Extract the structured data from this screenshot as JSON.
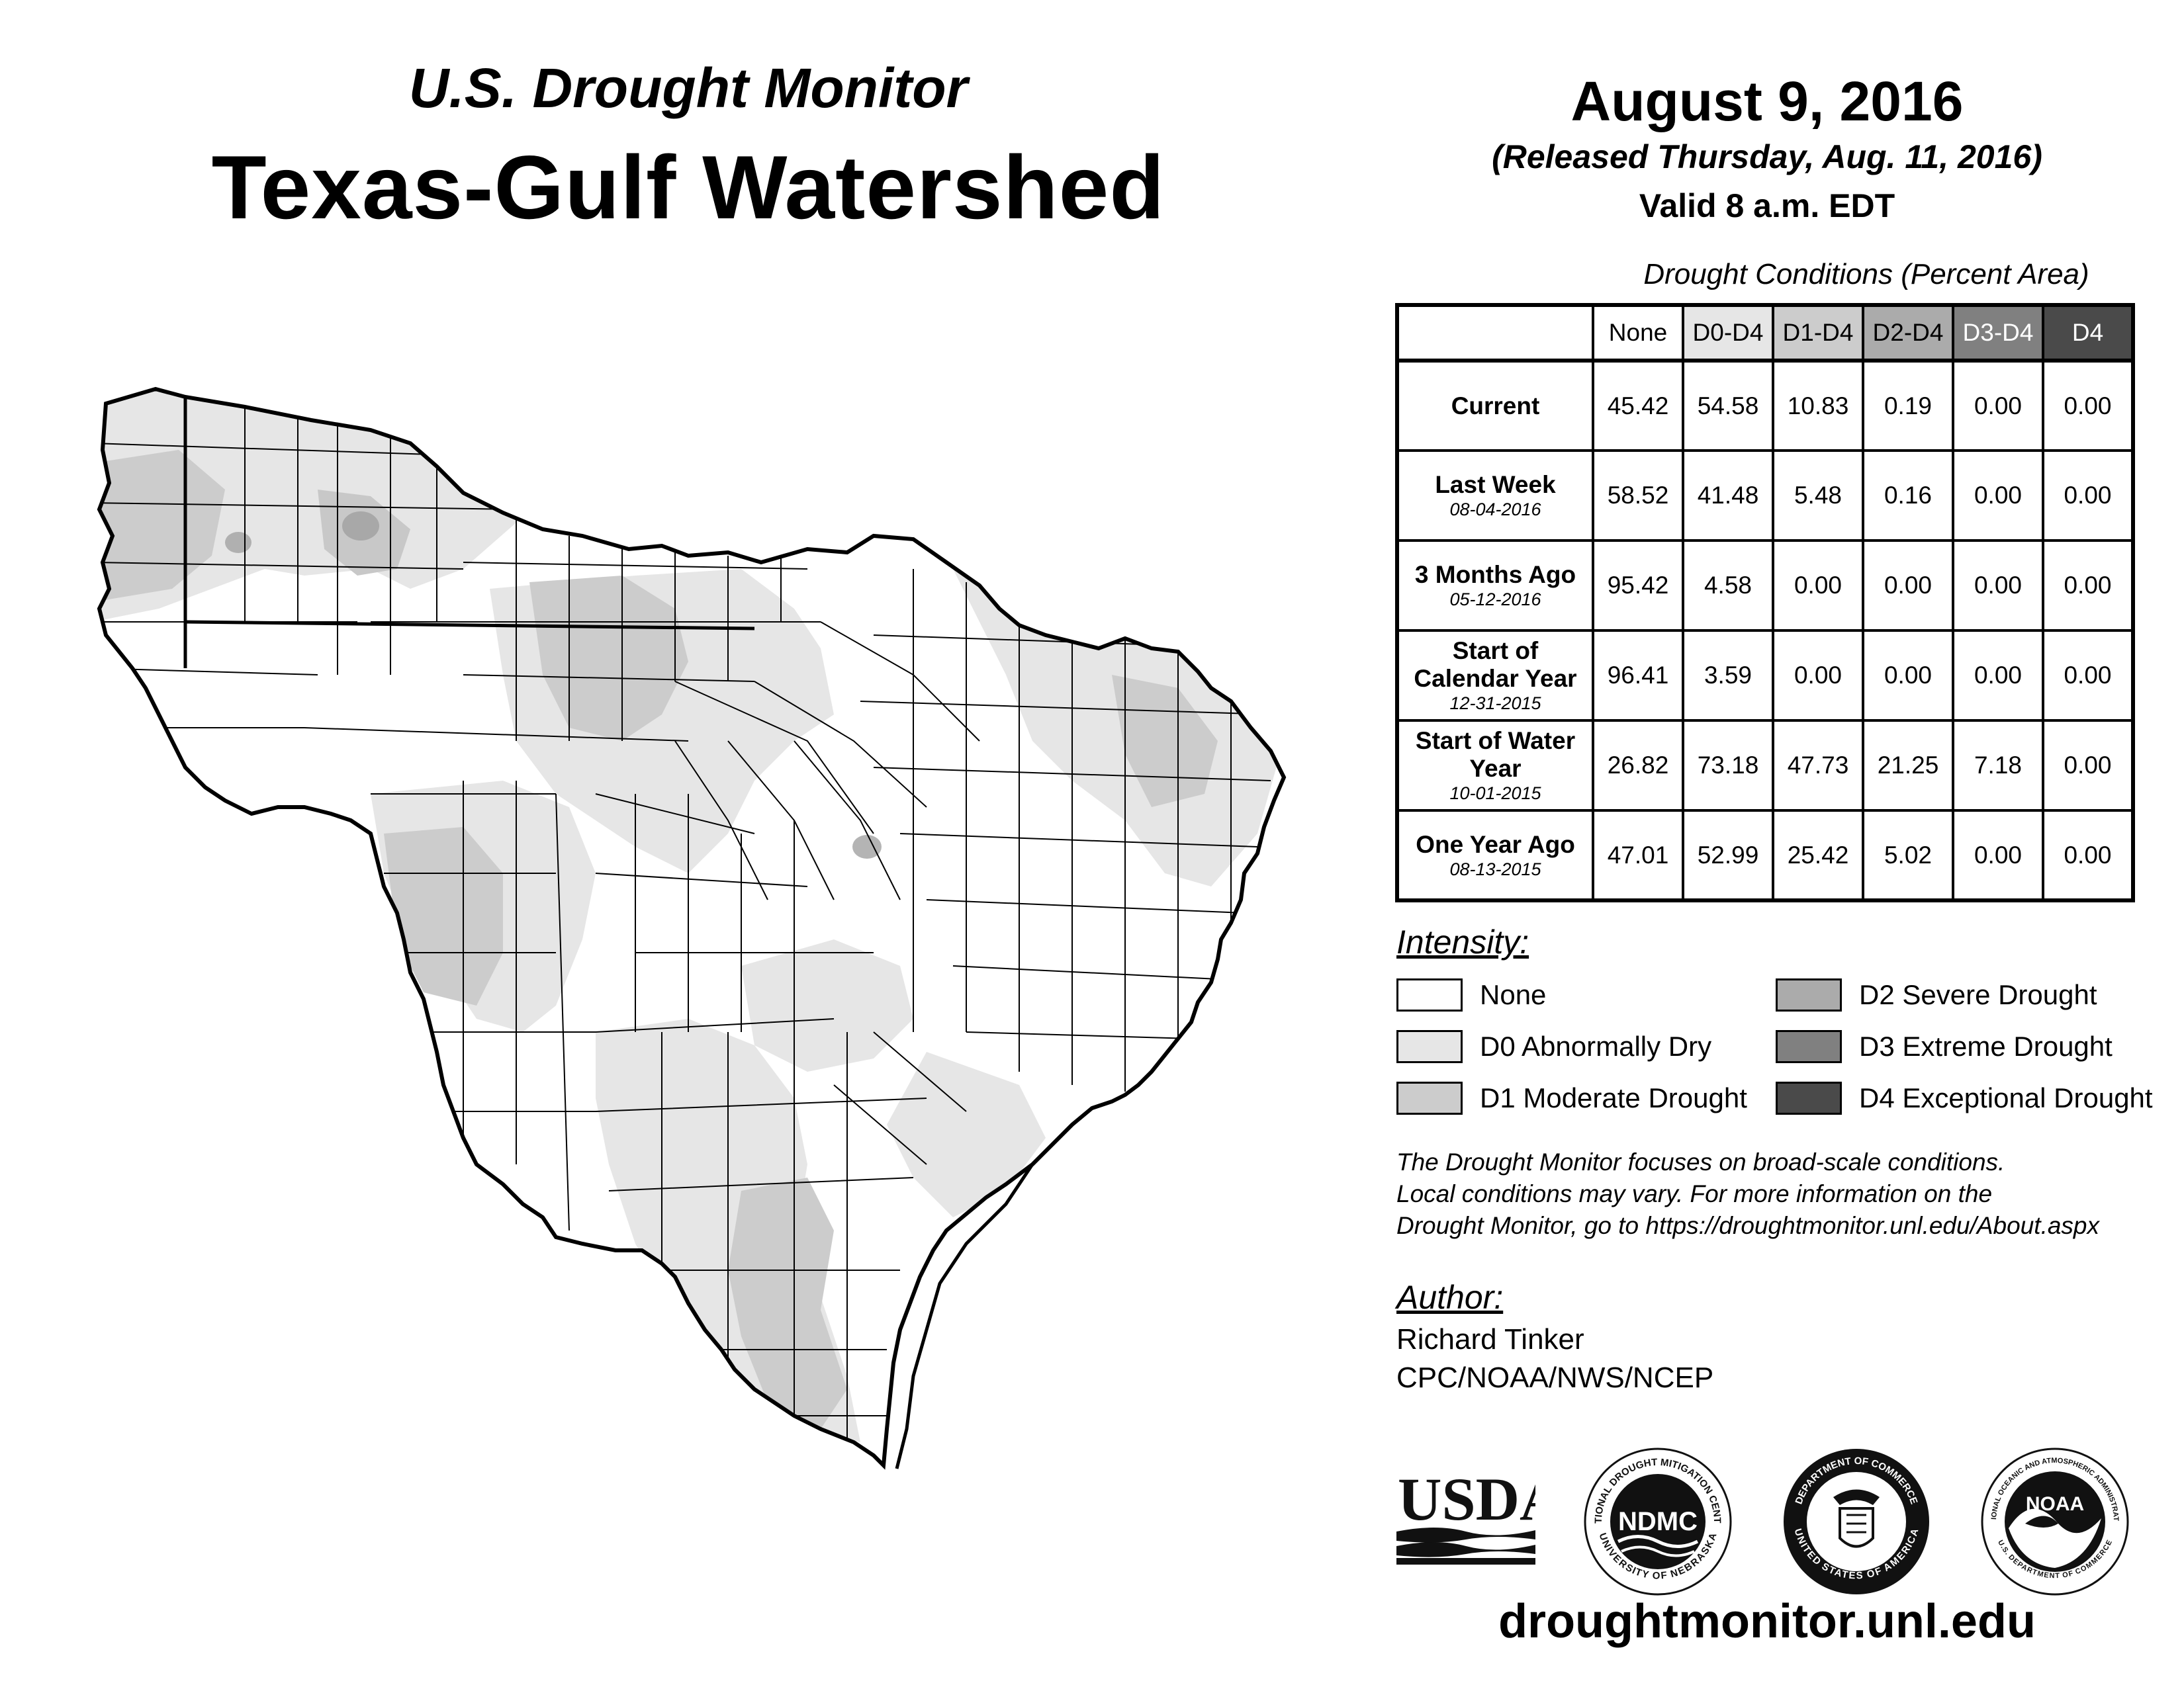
{
  "header": {
    "subtitle": "U.S. Drought Monitor",
    "title": "Texas-Gulf Watershed",
    "date": "August 9, 2016",
    "released": "(Released Thursday, Aug. 11, 2016)",
    "valid": "Valid 8 a.m. EDT"
  },
  "table": {
    "caption": "Drought Conditions (Percent Area)",
    "columns": [
      "None",
      "D0-D4",
      "D1-D4",
      "D2-D4",
      "D3-D4",
      "D4"
    ],
    "column_colors": [
      "#ffffff",
      "#e6e6e6",
      "#cccccc",
      "#ababab",
      "#808080",
      "#4a4a4a"
    ],
    "rows": [
      {
        "label": "Current",
        "date": "",
        "values": [
          "45.42",
          "54.58",
          "10.83",
          "0.19",
          "0.00",
          "0.00"
        ]
      },
      {
        "label": "Last Week",
        "date": "08-04-2016",
        "values": [
          "58.52",
          "41.48",
          "5.48",
          "0.16",
          "0.00",
          "0.00"
        ]
      },
      {
        "label": "3 Months Ago",
        "date": "05-12-2016",
        "values": [
          "95.42",
          "4.58",
          "0.00",
          "0.00",
          "0.00",
          "0.00"
        ]
      },
      {
        "label": "Start of Calendar Year",
        "date": "12-31-2015",
        "values": [
          "96.41",
          "3.59",
          "0.00",
          "0.00",
          "0.00",
          "0.00"
        ]
      },
      {
        "label": "Start of Water Year",
        "date": "10-01-2015",
        "values": [
          "26.82",
          "73.18",
          "47.73",
          "21.25",
          "7.18",
          "0.00"
        ]
      },
      {
        "label": "One Year Ago",
        "date": "08-13-2015",
        "values": [
          "47.01",
          "52.99",
          "25.42",
          "5.02",
          "0.00",
          "0.00"
        ]
      }
    ]
  },
  "legend": {
    "heading": "Intensity:",
    "items": [
      {
        "label": "None",
        "color": "#ffffff"
      },
      {
        "label": "D0 Abnormally Dry",
        "color": "#e6e6e6"
      },
      {
        "label": "D1 Moderate Drought",
        "color": "#cccccc"
      },
      {
        "label": "D2 Severe Drought",
        "color": "#ababab"
      },
      {
        "label": "D3 Extreme Drought",
        "color": "#808080"
      },
      {
        "label": "D4 Exceptional Drought",
        "color": "#4a4a4a"
      }
    ]
  },
  "note": {
    "line1": "The Drought Monitor focuses on broad-scale conditions.",
    "line2": "Local conditions may vary. For more information on the",
    "line3": "Drought Monitor, go to https://droughtmonitor.unl.edu/About.aspx"
  },
  "author": {
    "heading": "Author:",
    "name": "Richard Tinker",
    "org": "CPC/NOAA/NWS/NCEP"
  },
  "logos": {
    "usda": "USDA",
    "ndmc": "NDMC",
    "ndmc_ring_top": "NATIONAL DROUGHT MITIGATION CENTER",
    "ndmc_ring_bottom": "UNIVERSITY OF NEBRASKA",
    "doc_ring_top": "DEPARTMENT OF COMMERCE",
    "doc_ring_bottom": "UNITED STATES OF AMERICA",
    "noaa": "NOAA",
    "noaa_ring_top": "NATIONAL OCEANIC AND ATMOSPHERIC ADMINISTRATION",
    "noaa_ring_bottom": "U.S. DEPARTMENT OF COMMERCE"
  },
  "website": "droughtmonitor.unl.edu",
  "map": {
    "region": "Texas-Gulf Watershed",
    "fill_none": "#ffffff",
    "fill_d0": "#e6e6e6",
    "fill_d1": "#cccccc",
    "fill_d2": "#ababab"
  }
}
